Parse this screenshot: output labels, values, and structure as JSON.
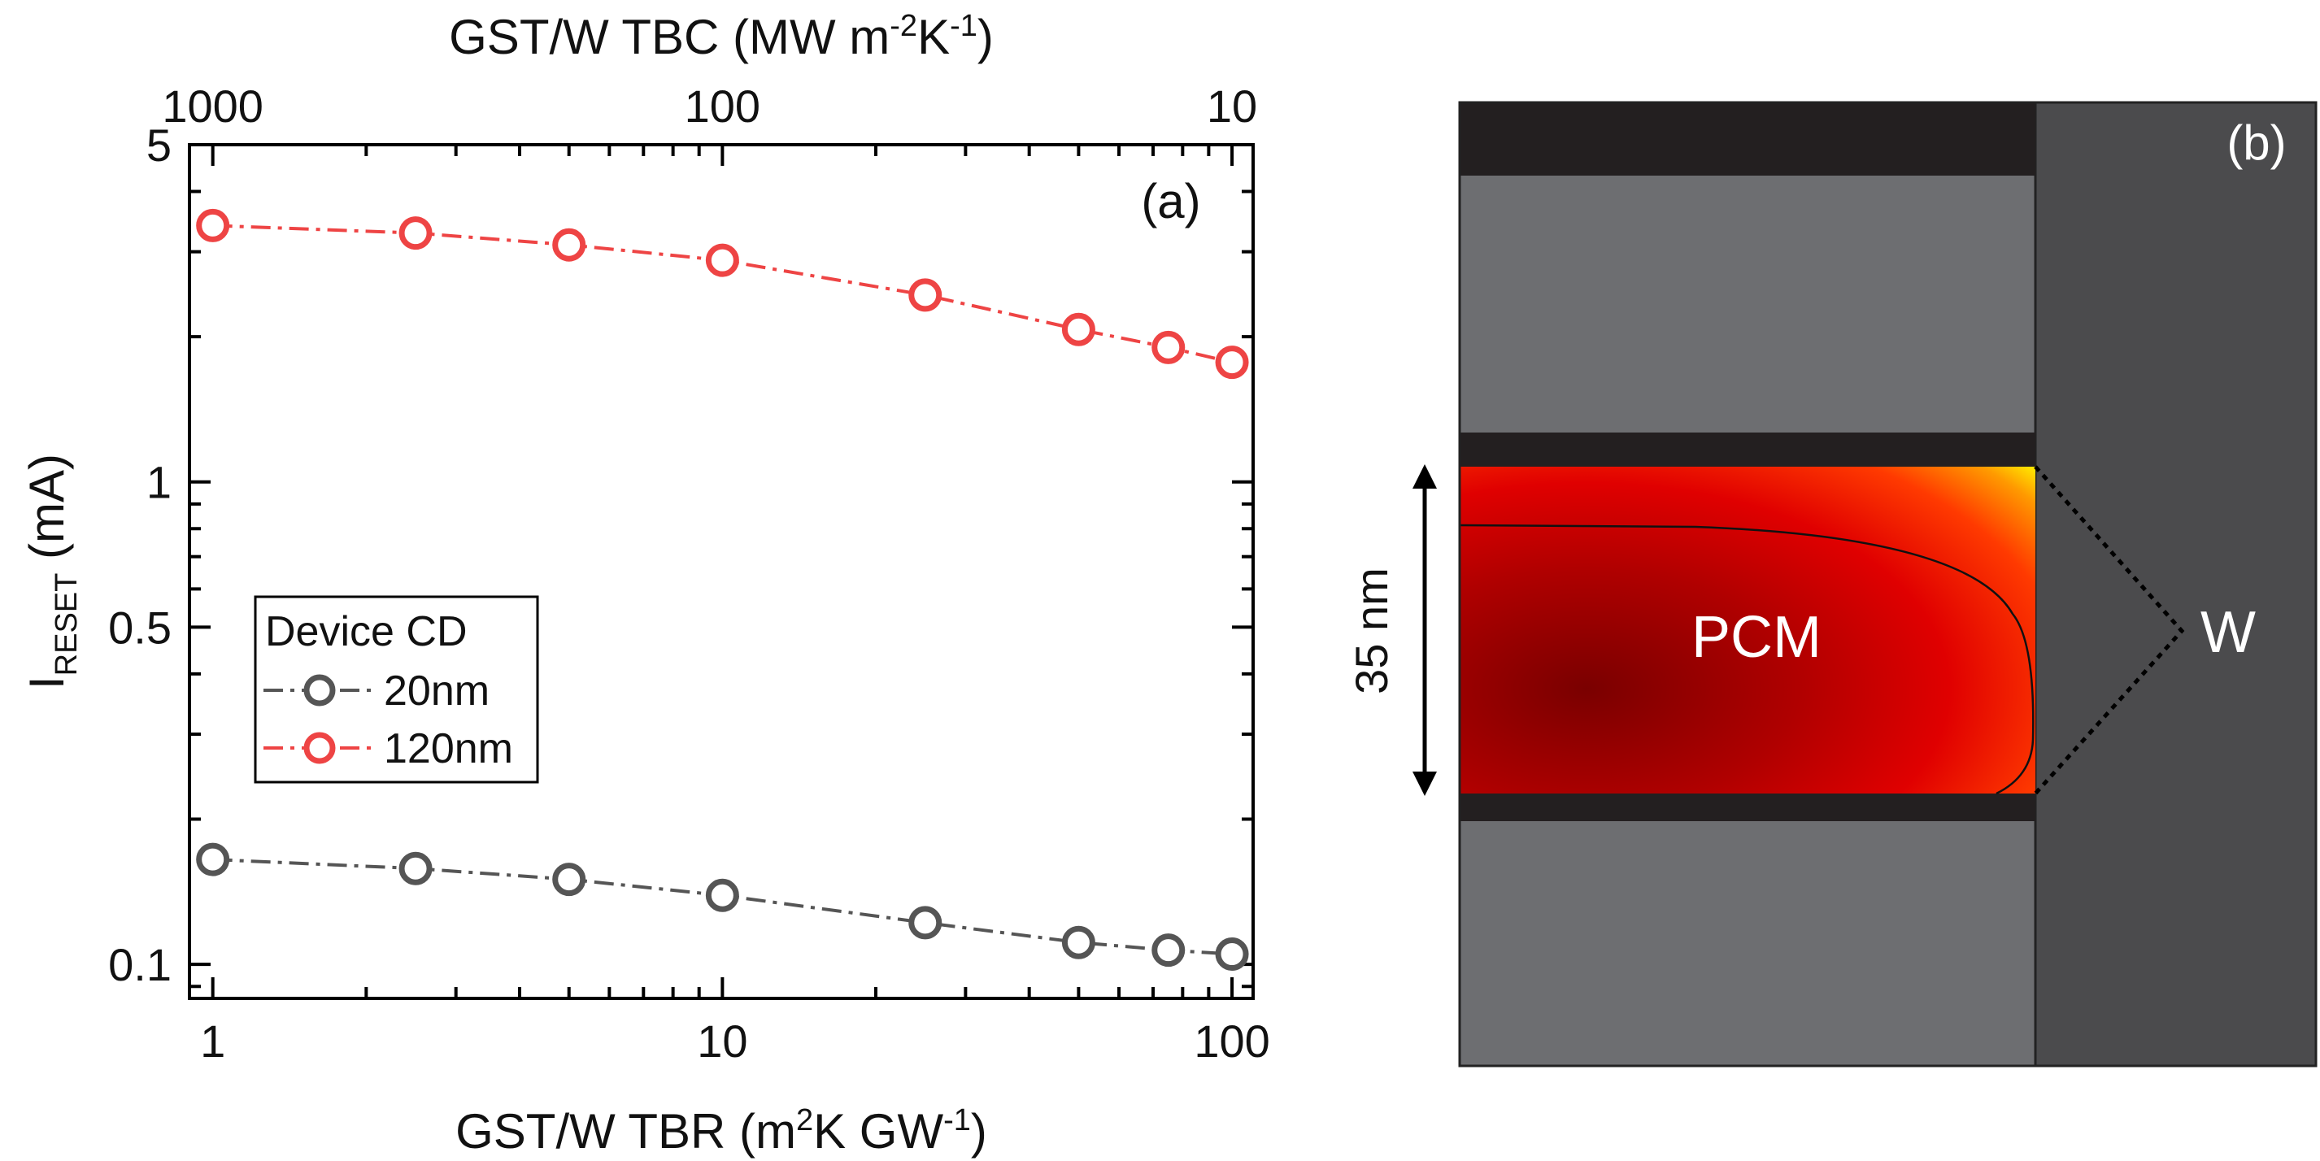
{
  "chart_data": {
    "type": "line",
    "panel_label": "(a)",
    "x": [
      1,
      2.5,
      5,
      10,
      25,
      50,
      75,
      100
    ],
    "series": [
      {
        "name": "20nm",
        "color": "#555555",
        "values": [
          0.165,
          0.158,
          0.15,
          0.139,
          0.122,
          0.111,
          0.107,
          0.105
        ]
      },
      {
        "name": "120nm",
        "color": "#ee4444",
        "values": [
          3.4,
          3.28,
          3.1,
          2.88,
          2.44,
          2.07,
          1.9,
          1.77
        ]
      }
    ],
    "xscale": "log",
    "yscale": "log",
    "xlim": [
      0.9,
      110
    ],
    "ylim": [
      0.085,
      5
    ],
    "xticks": [
      1,
      10,
      100
    ],
    "xtick_labels": [
      "1",
      "10",
      "100"
    ],
    "yticks": [
      0.1,
      0.5,
      1,
      5
    ],
    "ytick_labels": [
      "0.1",
      "0.5",
      "1",
      "5"
    ],
    "top_axis": {
      "ticks_at_x": [
        1,
        10,
        100
      ],
      "tick_labels": [
        "1000",
        "100",
        "10"
      ],
      "label_parts": {
        "main": "GST/W  TBC (MW m",
        "sup1": "-2",
        "mid": "K",
        "sup2": "-1",
        "end": ")"
      }
    },
    "xlabel_parts": {
      "main": "GST/W  TBR (m",
      "sup1": "2",
      "mid": "K GW",
      "sup2": "-1",
      "end": ")"
    },
    "ylabel_parts": {
      "main": "I",
      "sub": "RESET",
      "end": " (mA)"
    },
    "legend": {
      "title": "Device CD",
      "position": "center-left"
    }
  },
  "schematic": {
    "panel_label": "(b)",
    "pcm_label": "PCM",
    "electrode_label": "W",
    "dimension_label": "35 nm"
  }
}
